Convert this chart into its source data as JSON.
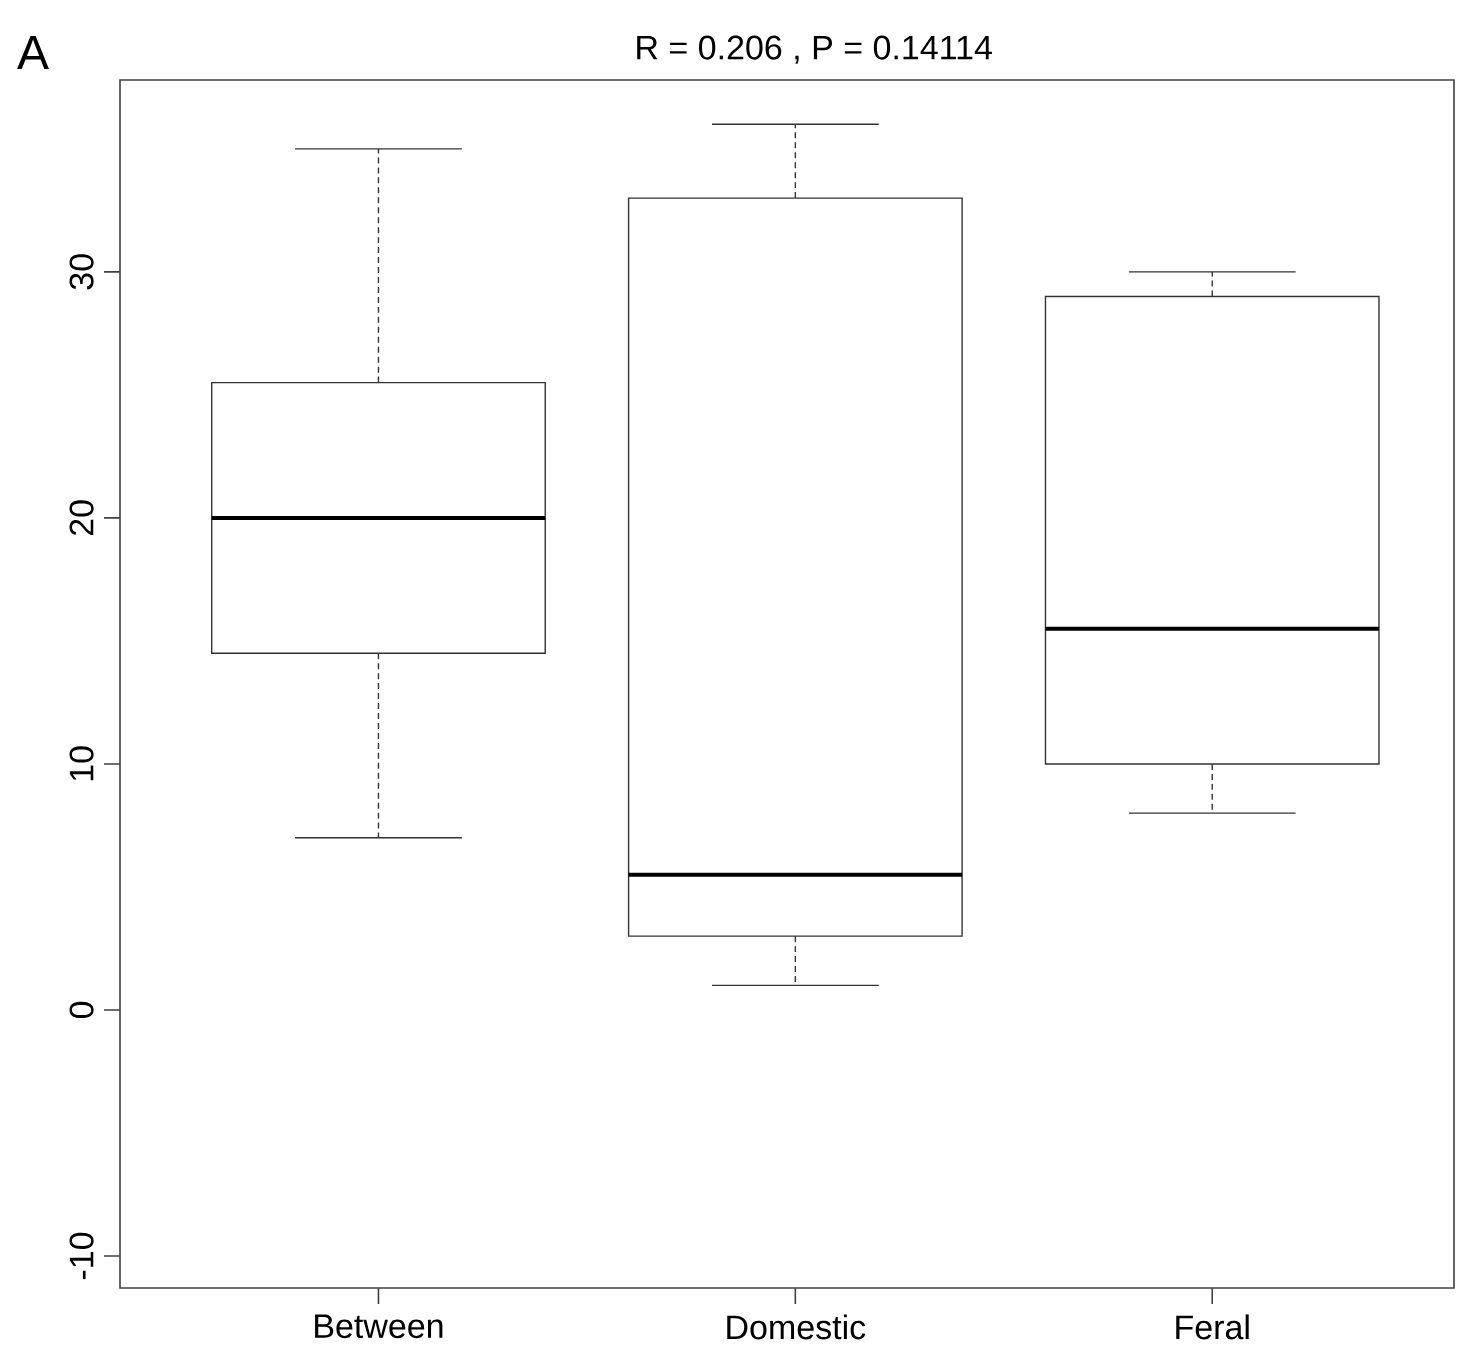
{
  "chart_data": {
    "type": "box",
    "title": "R = 0.206 , P = 0.14114",
    "annotations": [
      "A"
    ],
    "categories": [
      "Between",
      "Domestic",
      "Feral"
    ],
    "boxes": [
      {
        "low": 7,
        "q1": 14.5,
        "median": 20,
        "q3": 25.5,
        "high": 35
      },
      {
        "low": 1,
        "q1": 3,
        "median": 5.5,
        "q3": 33,
        "high": 36
      },
      {
        "low": 8,
        "q1": 10,
        "median": 15.5,
        "q3": 29,
        "high": 30
      }
    ],
    "ylim": [
      -11.3,
      37.8
    ],
    "yticks": [
      -10,
      0,
      10,
      20,
      30
    ],
    "grid": false
  }
}
